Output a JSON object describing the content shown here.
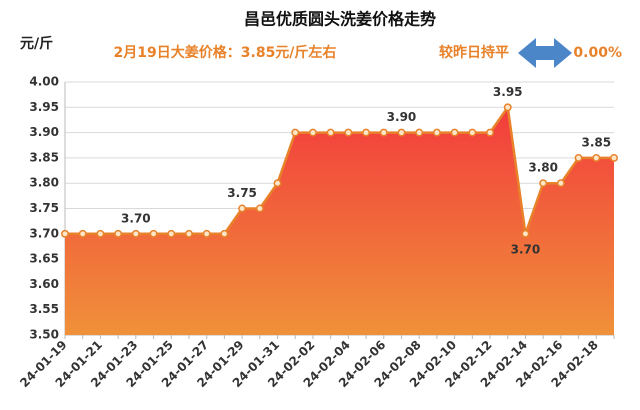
{
  "chart_data": {
    "type": "area-line",
    "title": "昌邑优质圆头洗姜价格走势",
    "unit_label": "元/斤",
    "subtitle": "2月19日大姜价格：3.85元/斤左右",
    "change_label": "较昨日持平",
    "change_value": "0.00%",
    "categories": [
      "24-01-19",
      null,
      "24-01-21",
      null,
      "24-01-23",
      null,
      "24-01-25",
      null,
      "24-01-27",
      null,
      "24-01-29",
      null,
      "24-01-31",
      null,
      "24-02-02",
      null,
      "24-02-04",
      null,
      "24-02-06",
      null,
      "24-02-08",
      null,
      "24-02-10",
      null,
      "24-02-12",
      null,
      "24-02-14",
      null,
      "24-02-16",
      null,
      "24-02-18",
      null
    ],
    "values": [
      3.7,
      3.7,
      3.7,
      3.7,
      3.7,
      3.7,
      3.7,
      3.7,
      3.7,
      3.7,
      3.75,
      3.75,
      3.8,
      3.9,
      3.9,
      3.9,
      3.9,
      3.9,
      3.9,
      3.9,
      3.9,
      3.9,
      3.9,
      3.9,
      3.9,
      3.95,
      3.7,
      3.8,
      3.8,
      3.85,
      3.85,
      3.85
    ],
    "value_labels": [
      null,
      null,
      null,
      null,
      "3.70",
      null,
      null,
      null,
      null,
      null,
      "3.75",
      null,
      null,
      null,
      null,
      null,
      null,
      null,
      null,
      "3.90",
      null,
      null,
      null,
      null,
      null,
      "3.95",
      "3.70",
      "3.80",
      null,
      null,
      "3.85",
      null
    ],
    "line_color": "#e8822a",
    "fill_top": "#f23c3c",
    "fill_bottom": "#f0913a",
    "ylim": [
      3.5,
      4.0
    ],
    "yticks": [
      {
        "value": 3.5,
        "label": "3.50"
      },
      {
        "value": 3.55,
        "label": "3.55"
      },
      {
        "value": 3.6,
        "label": "3.60"
      },
      {
        "value": 3.65,
        "label": "3.65"
      },
      {
        "value": 3.7,
        "label": "3.70"
      },
      {
        "value": 3.75,
        "label": "3.75"
      },
      {
        "value": 3.8,
        "label": "3.80"
      },
      {
        "value": 3.85,
        "label": "3.85"
      },
      {
        "value": 3.9,
        "label": "3.90"
      },
      {
        "value": 3.95,
        "label": "3.95"
      },
      {
        "value": 4.0,
        "label": "4.00"
      }
    ],
    "grid": true
  }
}
